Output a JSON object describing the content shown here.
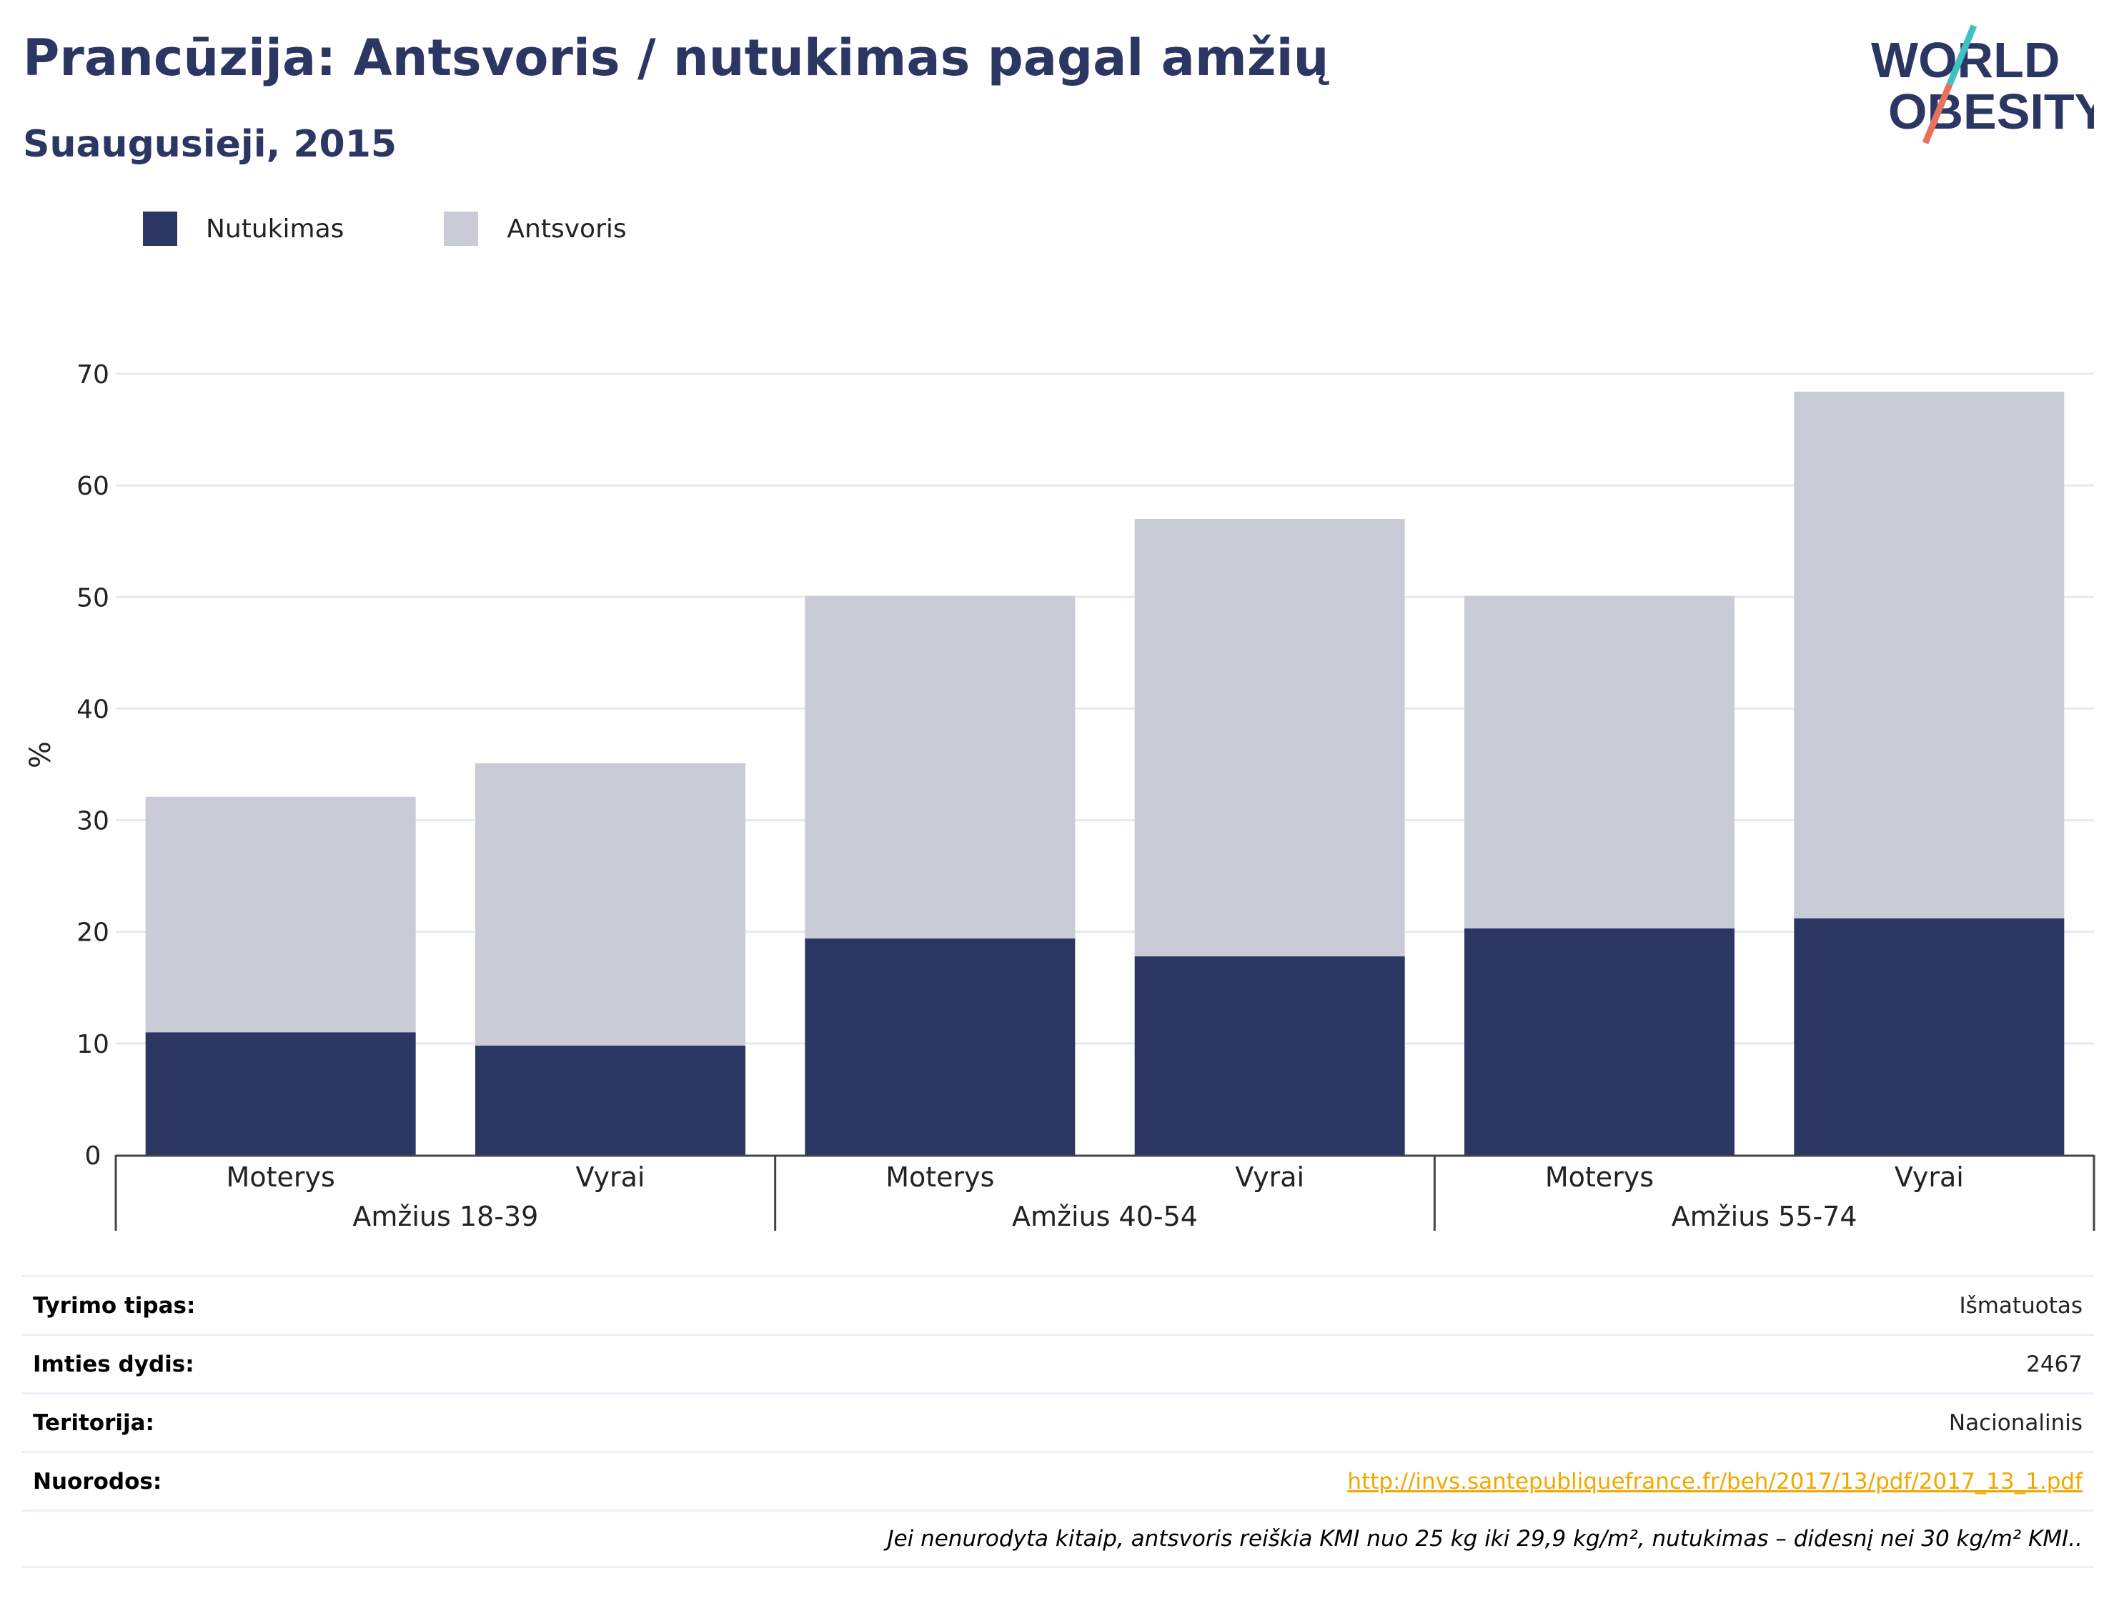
{
  "header": {
    "title": "Prancūzija: Antsvoris / nutukimas pagal amžių",
    "subtitle": "Suaugusieji, 2015"
  },
  "logo": {
    "line1": "WORLD",
    "line2": "OBESITY",
    "colors": {
      "text": "#2b3663",
      "slash_top": "#3ec1c1",
      "slash_bottom": "#e8715d"
    }
  },
  "chart_data": {
    "type": "bar",
    "stacked": true,
    "categories": [
      "Moterys",
      "Vyrai",
      "Moterys",
      "Vyrai",
      "Moterys",
      "Vyrai"
    ],
    "groups": [
      {
        "label": "Amžius 18-39",
        "categories": [
          "Moterys",
          "Vyrai"
        ]
      },
      {
        "label": "Amžius 40-54",
        "categories": [
          "Moterys",
          "Vyrai"
        ]
      },
      {
        "label": "Amžius 55-74",
        "categories": [
          "Moterys",
          "Vyrai"
        ]
      }
    ],
    "series": [
      {
        "name": "Nutukimas",
        "color": "#2b3663",
        "values": [
          11.0,
          9.8,
          19.4,
          17.8,
          20.3,
          21.2
        ]
      },
      {
        "name": "Antsvoris",
        "color": "#c9cbd7",
        "values": [
          21.1,
          25.3,
          30.7,
          39.2,
          29.8,
          47.2
        ]
      }
    ],
    "ylabel": "%",
    "ylim": [
      0,
      70
    ],
    "yticks": [
      0,
      10,
      20,
      30,
      40,
      50,
      60,
      70
    ],
    "grid": true,
    "legend": "top-left"
  },
  "info": {
    "rows": [
      {
        "key": "Tyrimo tipas:",
        "value": "Išmatuotas"
      },
      {
        "key": "Imties dydis:",
        "value": "2467"
      },
      {
        "key": "Teritorija:",
        "value": "Nacionalinis"
      }
    ],
    "links_key": "Nuorodos:",
    "link": "http://invs.santepubliquefrance.fr/beh/2017/13/pdf/2017_13_1.pdf",
    "note": "Jei nenurodyta kitaip, antsvoris reiškia KMI nuo 25 kg iki 29,9 kg/m², nutukimas – didesnį nei 30 kg/m² KMI.."
  }
}
